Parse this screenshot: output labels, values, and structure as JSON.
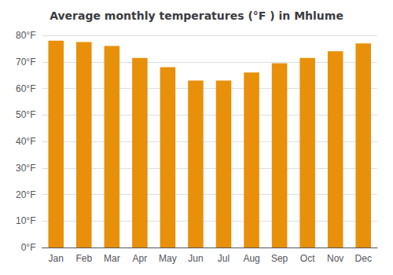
{
  "chart_data": {
    "type": "bar",
    "title": "Average monthly temperatures (°F ) in Mhlume",
    "categories": [
      "Jan",
      "Feb",
      "Mar",
      "Apr",
      "May",
      "Jun",
      "Jul",
      "Aug",
      "Sep",
      "Oct",
      "Nov",
      "Dec"
    ],
    "values": [
      78,
      77.5,
      76,
      71.5,
      68,
      63,
      63,
      66,
      69.5,
      71.5,
      74,
      77
    ],
    "color": "#E8900A",
    "ylim": [
      0,
      80
    ],
    "yticks": [
      {
        "value": 0,
        "label": "0°F"
      },
      {
        "value": 10,
        "label": "10°F"
      },
      {
        "value": 20,
        "label": "20°F"
      },
      {
        "value": 30,
        "label": "30°F"
      },
      {
        "value": 40,
        "label": "40°F"
      },
      {
        "value": 50,
        "label": "50°F"
      },
      {
        "value": 60,
        "label": "60°F"
      },
      {
        "value": 70,
        "label": "70°F"
      },
      {
        "value": 80,
        "label": "80°F"
      }
    ],
    "grid": true
  }
}
